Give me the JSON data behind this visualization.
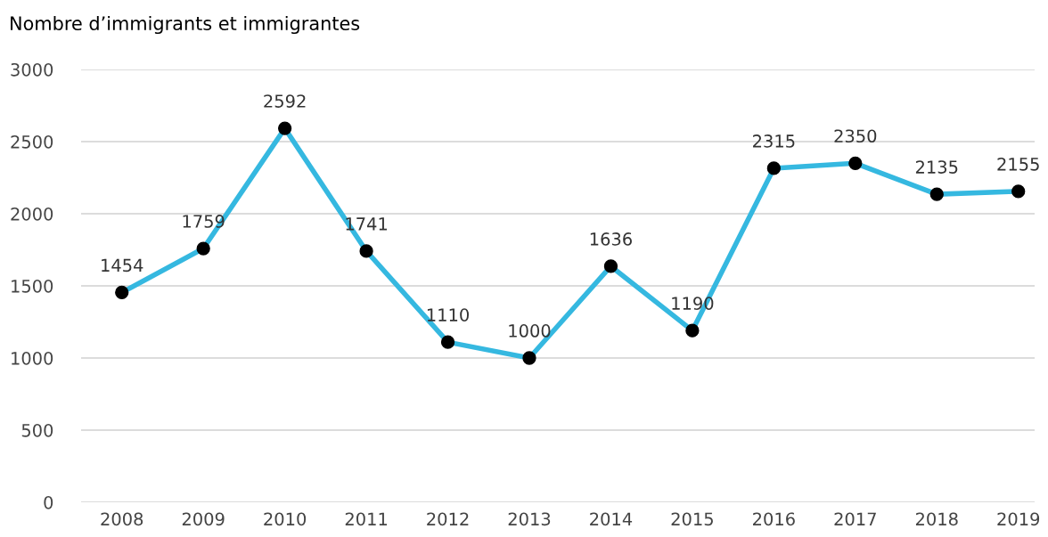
{
  "chart_data": {
    "type": "line",
    "title": "Nombre d’immigrants et immigrantes",
    "categories": [
      "2008",
      "2009",
      "2010",
      "2011",
      "2012",
      "2013",
      "2014",
      "2015",
      "2016",
      "2017",
      "2018",
      "2019"
    ],
    "series": [
      {
        "color": "#35b8e0",
        "values": [
          1454,
          1759,
          2592,
          1741,
          1110,
          1000,
          1636,
          1190,
          2315,
          2350,
          2135,
          2155
        ]
      }
    ],
    "ylim": [
      0,
      3000
    ],
    "yticks": [
      0,
      500,
      1000,
      1500,
      2000,
      2500,
      3000
    ],
    "grid": "y",
    "marker": "circle",
    "line_style": "solid",
    "data_labels": true
  }
}
